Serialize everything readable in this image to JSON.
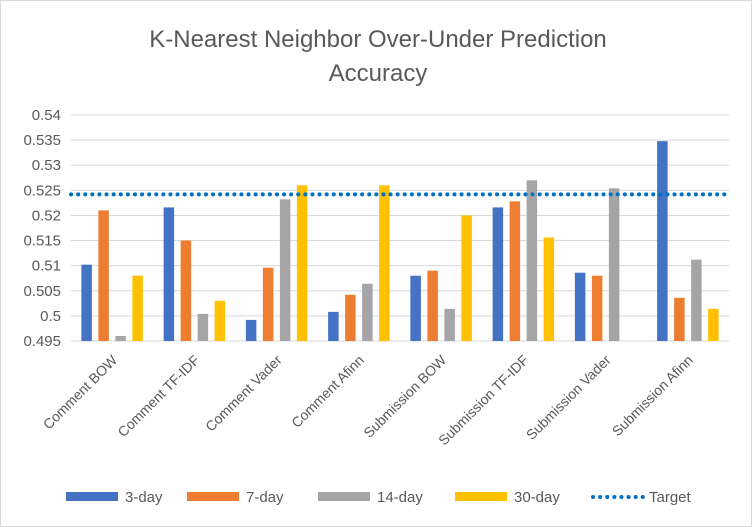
{
  "chart_data": {
    "type": "bar",
    "title": "K-Nearest Neighbor Over-Under Prediction Accuracy",
    "title_lines": [
      "K-Nearest Neighbor Over-Under Prediction",
      "Accuracy"
    ],
    "categories": [
      "Comment BOW",
      "Comment TF-IDF",
      "Comment Vader",
      "Comment Afinn",
      "Submission BOW",
      "Submission TF-IDF",
      "Submission Vader",
      "Submission Afinn"
    ],
    "series": [
      {
        "name": "3-day",
        "color": "#4472C4",
        "values": [
          0.5102,
          0.5216,
          0.4992,
          0.5008,
          0.508,
          0.5216,
          0.5086,
          0.5348
        ]
      },
      {
        "name": "7-day",
        "color": "#ED7D31",
        "values": [
          0.521,
          0.515,
          0.5096,
          0.5042,
          0.509,
          0.5228,
          0.508,
          0.5036
        ]
      },
      {
        "name": "14-day",
        "color": "#A5A5A5",
        "values": [
          0.496,
          0.5004,
          0.5232,
          0.5064,
          0.5014,
          0.527,
          0.5254,
          0.5112
        ]
      },
      {
        "name": "30-day",
        "color": "#FFC000",
        "values": [
          0.508,
          0.503,
          0.526,
          0.526,
          0.52,
          0.5156,
          null,
          0.5014
        ]
      }
    ],
    "target": {
      "name": "Target",
      "value": 0.5242,
      "color": "#0070C0",
      "style": "dotted"
    },
    "ylim": [
      0.495,
      0.54
    ],
    "yticks": [
      "0.495",
      "0.5",
      "0.505",
      "0.51",
      "0.515",
      "0.52",
      "0.525",
      "0.53",
      "0.535",
      "0.54"
    ],
    "grid": true,
    "legend": "bottom"
  }
}
